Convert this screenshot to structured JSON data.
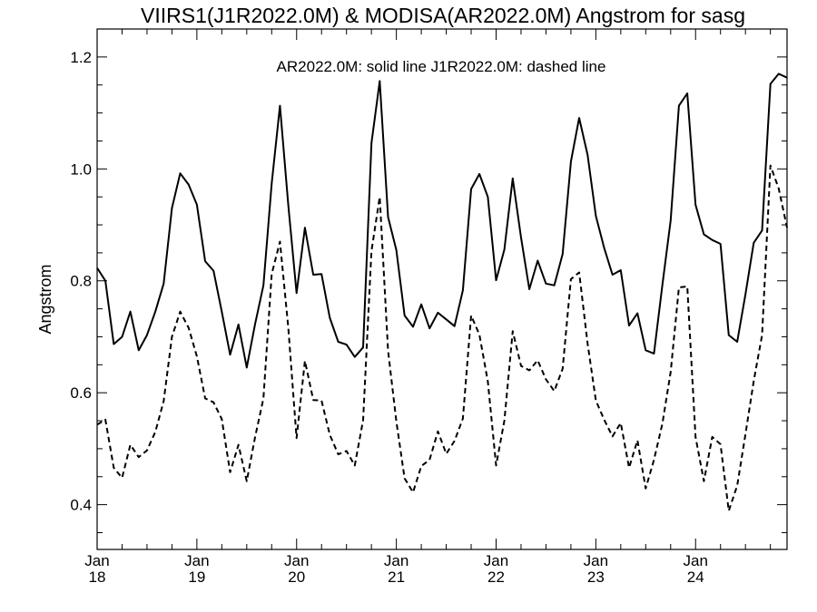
{
  "chart_data": {
    "type": "line",
    "title": "VIIRS1(J1R2022.0M) & MODISA(AR2022.0M)  Angstrom for sasg",
    "legend_text": "AR2022.0M: solid line   J1R2022.0M: dashed line",
    "xlabel": "",
    "ylabel": "Angstrom",
    "xlim": [
      2018.0,
      2024.917
    ],
    "ylim": [
      0.32,
      1.25
    ],
    "y_ticks": [
      0.4,
      0.6,
      0.8,
      1.0,
      1.2
    ],
    "y_tick_labels": [
      "0.4",
      "0.6",
      "0.8",
      "1.0",
      "1.2"
    ],
    "x_ticks": [
      {
        "x": 2018.0,
        "month": "Jan",
        "year": "18"
      },
      {
        "x": 2019.0,
        "month": "Jan",
        "year": "19"
      },
      {
        "x": 2020.0,
        "month": "Jan",
        "year": "20"
      },
      {
        "x": 2021.0,
        "month": "Jan",
        "year": "21"
      },
      {
        "x": 2022.0,
        "month": "Jan",
        "year": "22"
      },
      {
        "x": 2023.0,
        "month": "Jan",
        "year": "23"
      },
      {
        "x": 2024.0,
        "month": "Jan",
        "year": "24"
      }
    ],
    "grid": false,
    "series": [
      {
        "name": "AR2022.0M",
        "style": "solid",
        "color": "#000000",
        "x": [
          2018.0,
          2018.083,
          2018.167,
          2018.25,
          2018.333,
          2018.417,
          2018.5,
          2018.583,
          2018.667,
          2018.75,
          2018.833,
          2018.917,
          2019.0,
          2019.083,
          2019.167,
          2019.25,
          2019.333,
          2019.417,
          2019.5,
          2019.583,
          2019.667,
          2019.75,
          2019.833,
          2019.917,
          2020.0,
          2020.083,
          2020.167,
          2020.25,
          2020.333,
          2020.417,
          2020.5,
          2020.583,
          2020.667,
          2020.75,
          2020.833,
          2020.917,
          2021.0,
          2021.083,
          2021.167,
          2021.25,
          2021.333,
          2021.417,
          2021.5,
          2021.583,
          2021.667,
          2021.75,
          2021.833,
          2021.917,
          2022.0,
          2022.083,
          2022.167,
          2022.25,
          2022.333,
          2022.417,
          2022.5,
          2022.583,
          2022.667,
          2022.75,
          2022.833,
          2022.917,
          2023.0,
          2023.083,
          2023.167,
          2023.25,
          2023.333,
          2023.417,
          2023.5,
          2023.583,
          2023.667,
          2023.75,
          2023.833,
          2023.917,
          2024.0,
          2024.083,
          2024.167,
          2024.25,
          2024.333,
          2024.417,
          2024.5,
          2024.583,
          2024.667,
          2024.75,
          2024.833,
          2024.917
        ],
        "values": [
          0.823,
          0.8,
          0.687,
          0.7,
          0.745,
          0.676,
          0.703,
          0.745,
          0.795,
          0.93,
          0.992,
          0.972,
          0.936,
          0.835,
          0.818,
          0.745,
          0.668,
          0.722,
          0.645,
          0.722,
          0.792,
          0.974,
          1.113,
          0.935,
          0.778,
          0.895,
          0.811,
          0.812,
          0.734,
          0.691,
          0.686,
          0.664,
          0.681,
          1.046,
          1.157,
          0.914,
          0.855,
          0.738,
          0.718,
          0.758,
          0.715,
          0.743,
          0.731,
          0.719,
          0.783,
          0.964,
          0.991,
          0.95,
          0.801,
          0.856,
          0.983,
          0.877,
          0.785,
          0.836,
          0.795,
          0.792,
          0.848,
          1.013,
          1.091,
          1.025,
          0.916,
          0.859,
          0.811,
          0.819,
          0.72,
          0.742,
          0.676,
          0.67,
          0.793,
          0.908,
          1.113,
          1.135,
          0.936,
          0.883,
          0.873,
          0.866,
          0.703,
          0.691,
          0.776,
          0.868,
          0.89,
          1.152,
          1.17,
          1.163
        ]
      },
      {
        "name": "J1R2022.0M",
        "style": "dashed",
        "color": "#000000",
        "x": [
          2018.0,
          2018.083,
          2018.167,
          2018.25,
          2018.333,
          2018.417,
          2018.5,
          2018.583,
          2018.667,
          2018.75,
          2018.833,
          2018.917,
          2019.0,
          2019.083,
          2019.167,
          2019.25,
          2019.333,
          2019.417,
          2019.5,
          2019.583,
          2019.667,
          2019.75,
          2019.833,
          2019.917,
          2020.0,
          2020.083,
          2020.167,
          2020.25,
          2020.333,
          2020.417,
          2020.5,
          2020.583,
          2020.667,
          2020.75,
          2020.833,
          2020.917,
          2021.0,
          2021.083,
          2021.167,
          2021.25,
          2021.333,
          2021.417,
          2021.5,
          2021.583,
          2021.667,
          2021.75,
          2021.833,
          2021.917,
          2022.0,
          2022.083,
          2022.167,
          2022.25,
          2022.333,
          2022.417,
          2022.5,
          2022.583,
          2022.667,
          2022.75,
          2022.833,
          2022.917,
          2023.0,
          2023.083,
          2023.167,
          2023.25,
          2023.333,
          2023.417,
          2023.5,
          2023.583,
          2023.667,
          2023.75,
          2023.833,
          2023.917,
          2024.0,
          2024.083,
          2024.167,
          2024.25,
          2024.333,
          2024.417,
          2024.5,
          2024.583,
          2024.667,
          2024.75,
          2024.833,
          2024.917
        ],
        "values": [
          0.543,
          0.552,
          0.466,
          0.448,
          0.507,
          0.485,
          0.497,
          0.53,
          0.585,
          0.7,
          0.745,
          0.716,
          0.665,
          0.59,
          0.583,
          0.553,
          0.458,
          0.507,
          0.442,
          0.52,
          0.59,
          0.812,
          0.87,
          0.716,
          0.519,
          0.657,
          0.587,
          0.586,
          0.525,
          0.49,
          0.496,
          0.47,
          0.551,
          0.853,
          0.95,
          0.675,
          0.549,
          0.447,
          0.422,
          0.469,
          0.48,
          0.531,
          0.491,
          0.514,
          0.554,
          0.738,
          0.704,
          0.62,
          0.47,
          0.55,
          0.71,
          0.648,
          0.64,
          0.658,
          0.624,
          0.603,
          0.643,
          0.803,
          0.815,
          0.688,
          0.586,
          0.552,
          0.522,
          0.546,
          0.466,
          0.515,
          0.429,
          0.48,
          0.545,
          0.637,
          0.788,
          0.79,
          0.521,
          0.442,
          0.521,
          0.508,
          0.389,
          0.434,
          0.526,
          0.621,
          0.703,
          1.006,
          0.965,
          0.895
        ]
      }
    ]
  }
}
